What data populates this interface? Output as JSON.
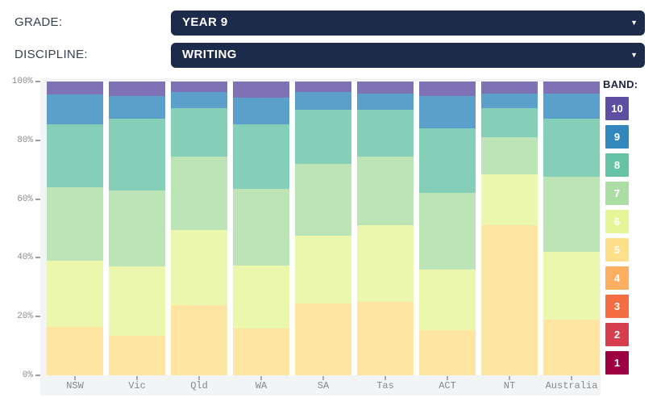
{
  "controls": {
    "grade_label": "GRADE:",
    "grade_value": "YEAR 9",
    "discipline_label": "DISCIPLINE:",
    "discipline_value": "WRITING",
    "dropdown_arrow": "▼"
  },
  "legend": {
    "title": "BAND:",
    "bands": [
      {
        "label": "10",
        "color": "#5e4fa2"
      },
      {
        "label": "9",
        "color": "#3288bd"
      },
      {
        "label": "8",
        "color": "#66c2a5"
      },
      {
        "label": "7",
        "color": "#abdda4"
      },
      {
        "label": "6",
        "color": "#e6f598"
      },
      {
        "label": "5",
        "color": "#fee08b"
      },
      {
        "label": "4",
        "color": "#fdae61"
      },
      {
        "label": "3",
        "color": "#f46d43"
      },
      {
        "label": "2",
        "color": "#d53e4f"
      },
      {
        "label": "1",
        "color": "#9e0142"
      }
    ]
  },
  "chart_data": {
    "type": "bar",
    "stacked": true,
    "percent_stacked": true,
    "categories": [
      "NSW",
      "Vic",
      "Qld",
      "WA",
      "SA",
      "Tas",
      "ACT",
      "NT",
      "Australia"
    ],
    "series": [
      {
        "name": "Band 5",
        "color": "#fee08b",
        "values": [
          16.5,
          13.5,
          24,
          16,
          24.5,
          25,
          15.5,
          51,
          19
        ]
      },
      {
        "name": "Band 6",
        "color": "#e6f598",
        "values": [
          22.5,
          23.5,
          25.5,
          21.5,
          23,
          26,
          20.5,
          17.5,
          23
        ]
      },
      {
        "name": "Band 7",
        "color": "#abdda4",
        "values": [
          25,
          26,
          25,
          26,
          24.5,
          23.5,
          26,
          12.5,
          25.5
        ]
      },
      {
        "name": "Band 8",
        "color": "#66c2a5",
        "values": [
          21.5,
          24.5,
          16.5,
          22,
          18.5,
          16,
          22,
          10,
          20
        ]
      },
      {
        "name": "Band 9",
        "color": "#3288bd",
        "values": [
          10,
          7.5,
          5.5,
          9,
          6,
          5.5,
          11,
          5,
          8.5
        ]
      },
      {
        "name": "Band 10",
        "color": "#5e4fa2",
        "values": [
          4.5,
          5,
          3.5,
          5.5,
          3.5,
          4,
          5,
          4,
          4
        ]
      }
    ],
    "yticks": [
      100,
      80,
      60,
      40,
      20,
      0
    ],
    "ytick_suffix": "%",
    "ylim": [
      0,
      100
    ],
    "grid": false,
    "legend_position": "right"
  }
}
